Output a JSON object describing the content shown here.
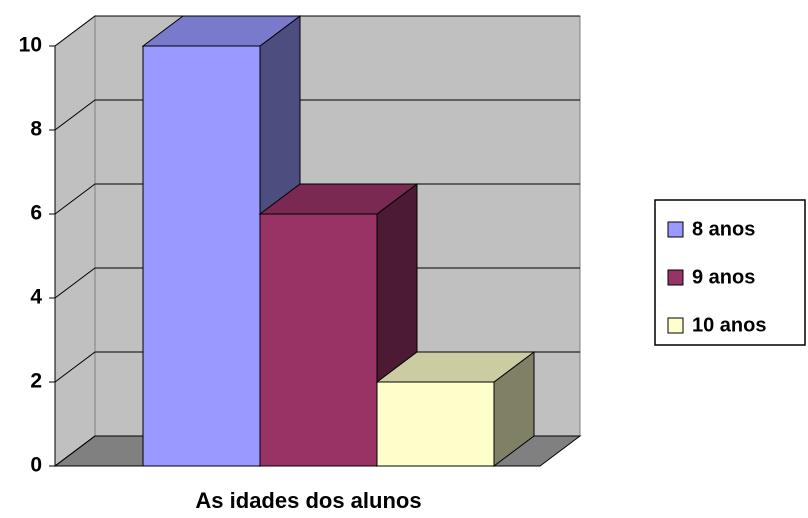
{
  "chart_data": {
    "type": "bar",
    "categories": [
      "As idades dos alunos"
    ],
    "series": [
      {
        "name": "8 anos",
        "color": "#9999ff",
        "values": [
          10
        ]
      },
      {
        "name": "9 anos",
        "color": "#993366",
        "values": [
          6
        ]
      },
      {
        "name": "10 anos",
        "color": "#ffffcc",
        "values": [
          2
        ]
      }
    ],
    "ylim": [
      0,
      10
    ],
    "yticks": [
      0,
      2,
      4,
      6,
      8,
      10
    ],
    "grid": true,
    "legend": "right"
  }
}
